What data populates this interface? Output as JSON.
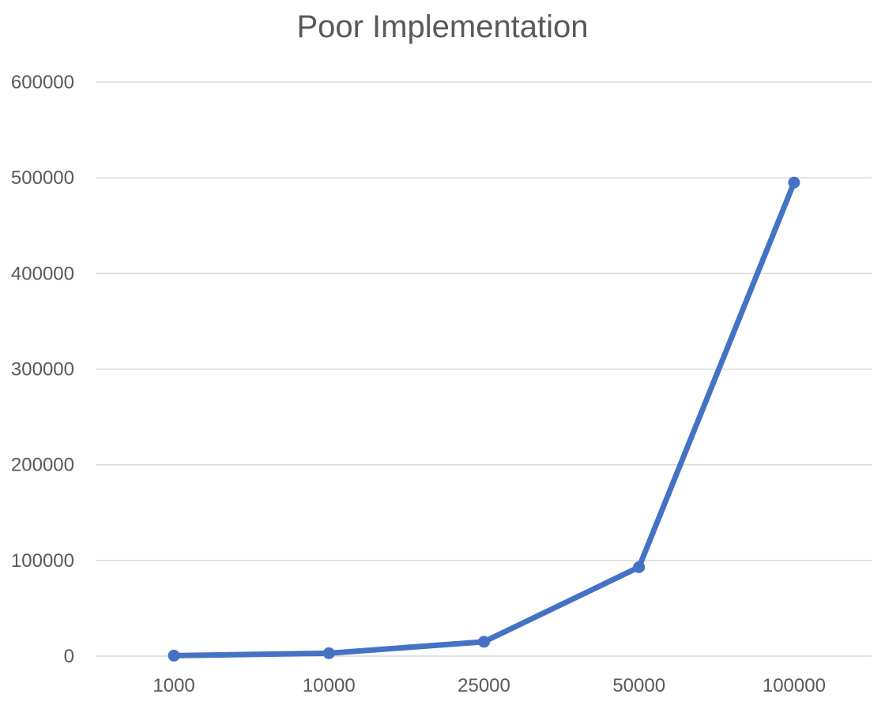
{
  "chart_data": {
    "type": "line",
    "title": "Poor Implementation",
    "xlabel": "",
    "ylabel": "",
    "categories": [
      "1000",
      "10000",
      "25000",
      "50000",
      "100000"
    ],
    "series": [
      {
        "values": [
          500,
          3000,
          15000,
          93000,
          495000
        ],
        "color": "#4472C4"
      }
    ],
    "ylim": [
      0,
      600000
    ],
    "yticks": [
      0,
      100000,
      200000,
      300000,
      400000,
      500000,
      600000
    ],
    "ytick_labels": [
      "0",
      "100000",
      "200000",
      "300000",
      "400000",
      "500000",
      "600000"
    ],
    "grid": true,
    "legend": "none"
  }
}
